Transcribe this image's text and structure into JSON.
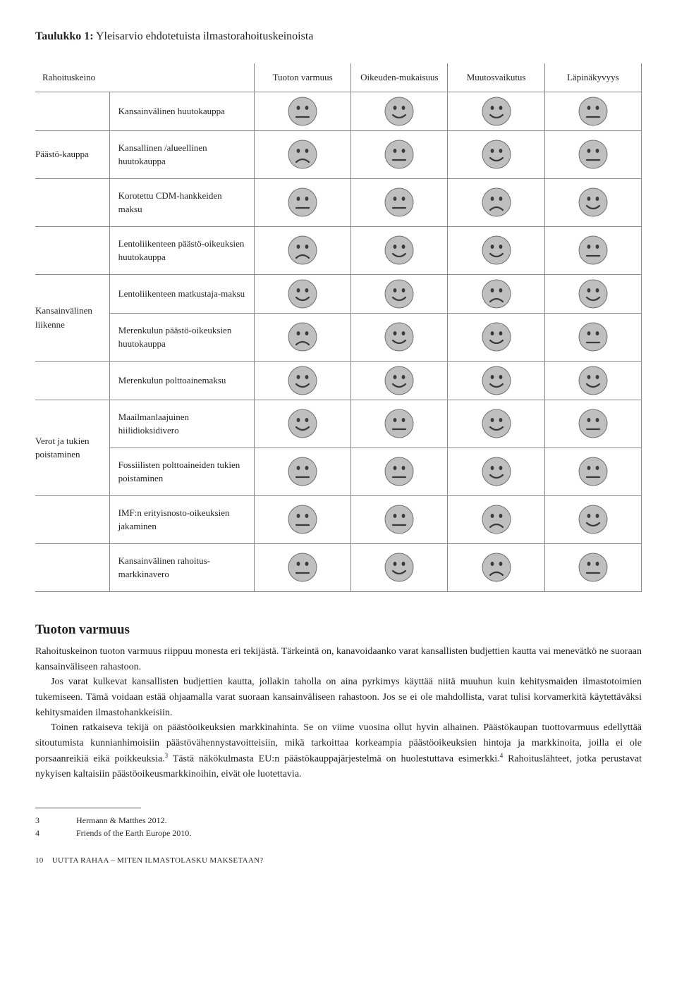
{
  "title_bold": "Taulukko 1:",
  "title_rest": " Yleisarvio ehdotetuista ilmastorahoituskeinoista",
  "columns": {
    "c0": "Rahoituskeino",
    "c1": "Tuoton varmuus",
    "c2": "Oikeuden-mukaisuus",
    "c3": "Muutosvaikutus",
    "c4": "Läpinäkyvyys"
  },
  "categories": {
    "paasto": "Päästö-kauppa",
    "liikenne": "Kansainvälinen liikenne",
    "verot": "Verot ja tukien poistaminen"
  },
  "rows": {
    "r1": "Kansainvälinen huutokauppa",
    "r2": "Kansallinen /alueellinen huutokauppa",
    "r3": "Korotettu CDM-hankkeiden maksu",
    "r4": "Lentoliikenteen päästö-oikeuksien huutokauppa",
    "r5": "Lentoliikenteen matkustaja-maksu",
    "r6": "Merenkulun päästö-oikeuksien huutokauppa",
    "r7": "Merenkulun polttoainemaksu",
    "r8": "Maailmanlaajuinen hiilidioksidivero",
    "r9": "Fossiilisten polttoaineiden tukien poistaminen",
    "r10": "IMF:n erityisnosto-oikeuksien jakaminen",
    "r11": "Kansainvälinen rahoitus-markkinavero"
  },
  "faces": {
    "r1": [
      "neutral",
      "happy",
      "happy",
      "neutral"
    ],
    "r2": [
      "sad",
      "neutral",
      "happy",
      "neutral"
    ],
    "r3": [
      "neutral",
      "neutral",
      "sad",
      "happy"
    ],
    "r4": [
      "sad",
      "happy",
      "happy",
      "neutral"
    ],
    "r5": [
      "happy",
      "happy",
      "sad",
      "happy"
    ],
    "r6": [
      "sad",
      "happy",
      "happy",
      "neutral"
    ],
    "r7": [
      "happy",
      "happy",
      "happy",
      "happy"
    ],
    "r8": [
      "happy",
      "neutral",
      "happy",
      "neutral"
    ],
    "r9": [
      "neutral",
      "neutral",
      "happy",
      "neutral"
    ],
    "r10": [
      "neutral",
      "neutral",
      "sad",
      "happy"
    ],
    "r11": [
      "neutral",
      "happy",
      "sad",
      "neutral"
    ]
  },
  "face_style": {
    "fill": "#bfbfbf",
    "stroke": "#6f6f6f",
    "eye": "#3a3a3a",
    "mouth": "#3a3a3a",
    "size": 42
  },
  "section_heading": "Tuoton varmuus",
  "para1": "Rahoituskeinon tuoton varmuus riippuu monesta eri tekijästä. Tärkeintä on, kanavoidaanko varat kansallisten budjettien kautta vai menevätkö ne suoraan kansainväliseen rahastoon.",
  "para2": "Jos varat kulkevat kansallisten budjettien kautta, jollakin taholla on aina pyrkimys käyttää niitä muuhun kuin kehitysmaiden ilmastotoimien tukemiseen. Tämä voidaan estää ohjaamalla varat suoraan kansainväliseen rahastoon. Jos se ei ole mahdollista, varat tulisi korvamerkitä käytettäväksi kehitysmaiden ilmastohankkeisiin.",
  "para3a": "Toinen ratkaiseva tekijä on päästöoikeuksien markkinahinta. Se on viime vuosina ollut hyvin alhainen. Päästökaupan tuottovarmuus edellyttää sitoutumista kunnianhimoisiin päästövähennystavoitteisiin, mikä tarkoittaa korkeampia päästöoikeuksien hintoja ja markkinoita, joilla ei ole porsaanreikiä eikä poikkeuksia.",
  "para3b": " Tästä näkökulmasta EU:n päästökauppajärjestelmä on huolestuttava esimerkki.",
  "para3c": " Rahoituslähteet, jotka perustavat nykyisen kaltaisiin päästöoikeusmarkkinoihin, eivät ole luotettavia.",
  "fn3_num": "3",
  "fn3_text": "Hermann & Matthes 2012.",
  "fn4_num": "4",
  "fn4_text": "Friends of the Earth Europe 2010.",
  "page_num": "10",
  "page_foot_text": "UUTTA RAHAA – MITEN ILMASTOLASKU MAKSETAAN?"
}
